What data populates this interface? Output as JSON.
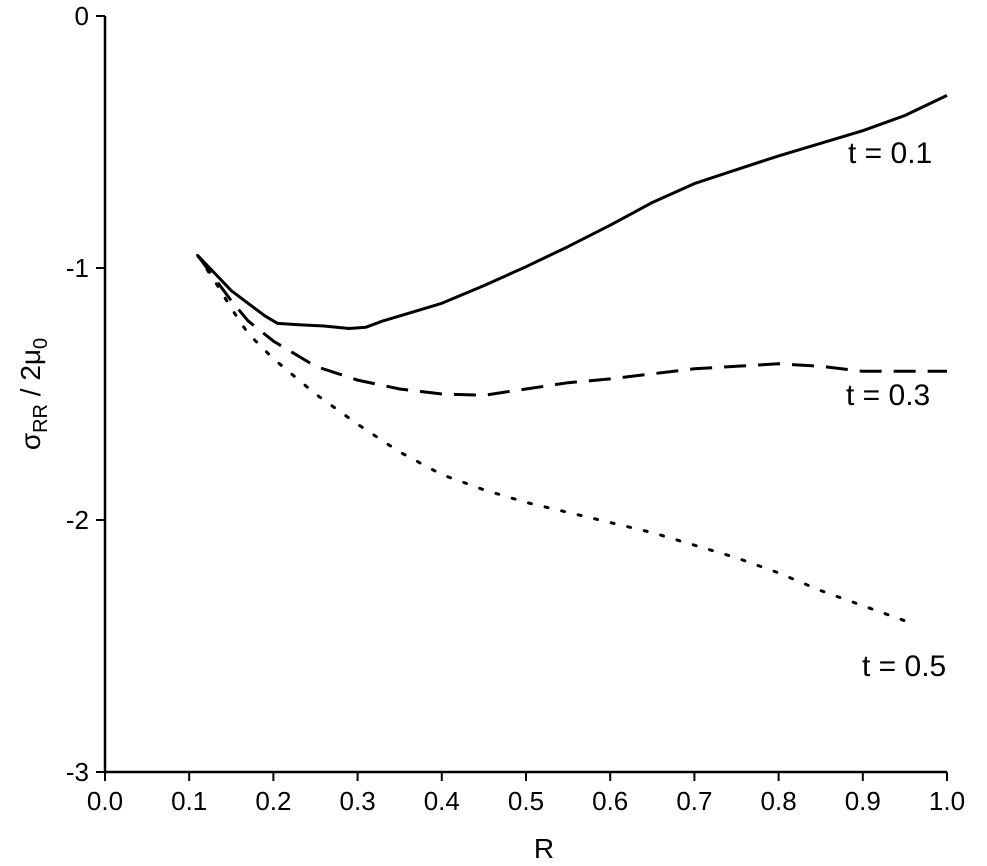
{
  "chart_data": {
    "type": "line",
    "title": "",
    "xlabel": "R",
    "ylabel": {
      "base": "σ",
      "sub": "RR",
      "mid": " / 2μ",
      "sub2": "0"
    },
    "xlim": [
      0.0,
      1.0
    ],
    "ylim": [
      -3,
      0
    ],
    "x_ticks": [
      "0.0",
      "0.1",
      "0.2",
      "0.3",
      "0.4",
      "0.5",
      "0.6",
      "0.7",
      "0.8",
      "0.9",
      "1.0"
    ],
    "y_ticks": [
      "0",
      "-1",
      "-2",
      "-3"
    ],
    "grid": false,
    "series": [
      {
        "name": "t = 0.1",
        "style": "solid",
        "points": [
          [
            0.11,
            -0.95
          ],
          [
            0.13,
            -1.02
          ],
          [
            0.15,
            -1.09
          ],
          [
            0.17,
            -1.14
          ],
          [
            0.19,
            -1.19
          ],
          [
            0.205,
            -1.22
          ],
          [
            0.23,
            -1.225
          ],
          [
            0.26,
            -1.23
          ],
          [
            0.29,
            -1.24
          ],
          [
            0.31,
            -1.235
          ],
          [
            0.33,
            -1.21
          ],
          [
            0.36,
            -1.18
          ],
          [
            0.4,
            -1.14
          ],
          [
            0.45,
            -1.07
          ],
          [
            0.5,
            -0.995
          ],
          [
            0.55,
            -0.915
          ],
          [
            0.6,
            -0.83
          ],
          [
            0.65,
            -0.74
          ],
          [
            0.7,
            -0.665
          ],
          [
            0.75,
            -0.61
          ],
          [
            0.8,
            -0.555
          ],
          [
            0.85,
            -0.505
          ],
          [
            0.9,
            -0.455
          ],
          [
            0.95,
            -0.395
          ],
          [
            1.0,
            -0.315
          ]
        ]
      },
      {
        "name": "t = 0.3",
        "style": "dashed",
        "points": [
          [
            0.11,
            -0.95
          ],
          [
            0.13,
            -1.04
          ],
          [
            0.15,
            -1.13
          ],
          [
            0.17,
            -1.21
          ],
          [
            0.2,
            -1.29
          ],
          [
            0.25,
            -1.39
          ],
          [
            0.3,
            -1.445
          ],
          [
            0.35,
            -1.48
          ],
          [
            0.4,
            -1.5
          ],
          [
            0.45,
            -1.505
          ],
          [
            0.5,
            -1.48
          ],
          [
            0.55,
            -1.455
          ],
          [
            0.6,
            -1.44
          ],
          [
            0.65,
            -1.42
          ],
          [
            0.7,
            -1.4
          ],
          [
            0.75,
            -1.39
          ],
          [
            0.8,
            -1.38
          ],
          [
            0.85,
            -1.39
          ],
          [
            0.9,
            -1.41
          ],
          [
            0.95,
            -1.41
          ],
          [
            1.0,
            -1.41
          ]
        ]
      },
      {
        "name": "t = 0.5",
        "style": "dotted",
        "points": [
          [
            0.11,
            -0.95
          ],
          [
            0.13,
            -1.05
          ],
          [
            0.15,
            -1.16
          ],
          [
            0.17,
            -1.26
          ],
          [
            0.2,
            -1.36
          ],
          [
            0.25,
            -1.5
          ],
          [
            0.3,
            -1.62
          ],
          [
            0.35,
            -1.73
          ],
          [
            0.4,
            -1.82
          ],
          [
            0.45,
            -1.88
          ],
          [
            0.5,
            -1.93
          ],
          [
            0.55,
            -1.97
          ],
          [
            0.6,
            -2.01
          ],
          [
            0.65,
            -2.05
          ],
          [
            0.7,
            -2.1
          ],
          [
            0.75,
            -2.15
          ],
          [
            0.8,
            -2.21
          ],
          [
            0.85,
            -2.28
          ],
          [
            0.9,
            -2.34
          ],
          [
            0.95,
            -2.4
          ]
        ]
      }
    ]
  }
}
